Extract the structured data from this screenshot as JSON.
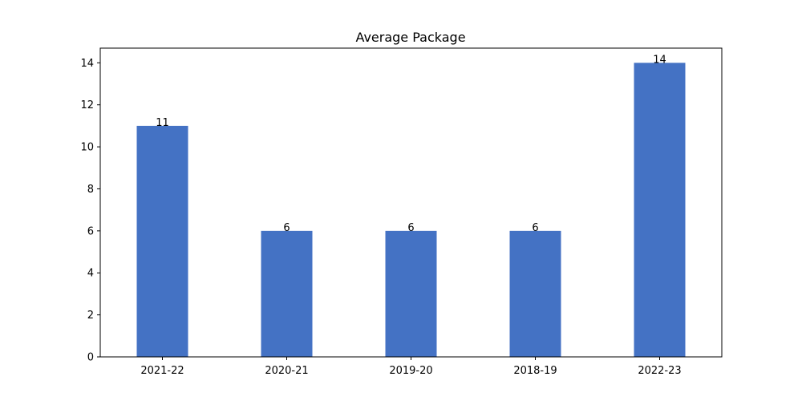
{
  "chart_data": {
    "type": "bar",
    "title": "Average Package",
    "xlabel": "",
    "ylabel": "",
    "categories": [
      "2021-22",
      "2020-21",
      "2019-20",
      "2018-19",
      "2022-23"
    ],
    "values": [
      11,
      6,
      6,
      6,
      14
    ],
    "data_labels": [
      "11",
      "6",
      "6",
      "6",
      "14"
    ],
    "ylim": [
      0,
      14.7
    ],
    "yticks": [
      0,
      2,
      4,
      6,
      8,
      10,
      12,
      14
    ],
    "ytick_labels": [
      "0",
      "2",
      "4",
      "6",
      "8",
      "10",
      "12",
      "14"
    ],
    "bar_color": "#4472c4",
    "grid": false,
    "legend": "none"
  }
}
